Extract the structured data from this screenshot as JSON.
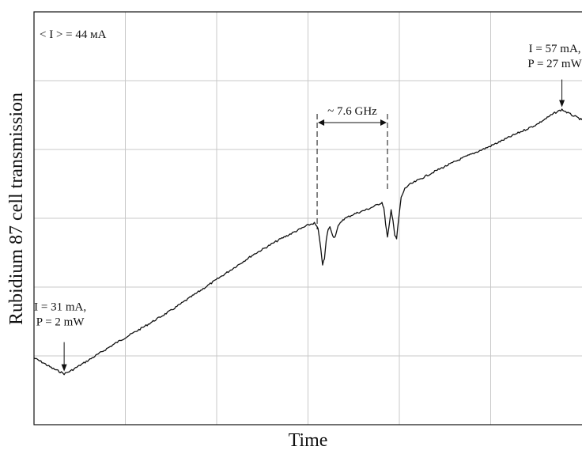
{
  "chart_data": {
    "type": "line",
    "title": "",
    "xlabel": "Time",
    "ylabel": "Rubidium 87 cell transmission",
    "grid": true,
    "x_ticks": 6,
    "y_ticks": 6,
    "xlim": [
      0,
      6
    ],
    "ylim": [
      0,
      6
    ],
    "series": [
      {
        "color": "#111111",
        "points": [
          [
            0.0,
            0.97
          ],
          [
            0.1,
            0.9
          ],
          [
            0.2,
            0.82
          ],
          [
            0.3,
            0.76
          ],
          [
            0.33,
            0.74
          ],
          [
            0.4,
            0.78
          ],
          [
            0.6,
            0.94
          ],
          [
            0.9,
            1.19
          ],
          [
            1.2,
            1.42
          ],
          [
            1.5,
            1.66
          ],
          [
            1.8,
            1.93
          ],
          [
            2.1,
            2.2
          ],
          [
            2.4,
            2.47
          ],
          [
            2.7,
            2.7
          ],
          [
            3.0,
            2.9
          ],
          [
            3.07,
            2.93
          ],
          [
            3.11,
            2.85
          ],
          [
            3.14,
            2.55
          ],
          [
            3.16,
            2.33
          ],
          [
            3.18,
            2.41
          ],
          [
            3.2,
            2.68
          ],
          [
            3.22,
            2.84
          ],
          [
            3.24,
            2.87
          ],
          [
            3.26,
            2.8
          ],
          [
            3.28,
            2.72
          ],
          [
            3.3,
            2.75
          ],
          [
            3.33,
            2.88
          ],
          [
            3.38,
            2.98
          ],
          [
            3.5,
            3.06
          ],
          [
            3.65,
            3.13
          ],
          [
            3.75,
            3.19
          ],
          [
            3.81,
            3.23
          ],
          [
            3.83,
            3.15
          ],
          [
            3.85,
            2.92
          ],
          [
            3.87,
            2.72
          ],
          [
            3.89,
            2.9
          ],
          [
            3.91,
            3.12
          ],
          [
            3.93,
            2.98
          ],
          [
            3.95,
            2.75
          ],
          [
            3.97,
            2.7
          ],
          [
            3.99,
            2.96
          ],
          [
            4.02,
            3.3
          ],
          [
            4.06,
            3.43
          ],
          [
            4.1,
            3.48
          ],
          [
            4.4,
            3.69
          ],
          [
            4.7,
            3.88
          ],
          [
            5.0,
            4.05
          ],
          [
            5.3,
            4.24
          ],
          [
            5.5,
            4.36
          ],
          [
            5.7,
            4.53
          ],
          [
            5.78,
            4.58
          ],
          [
            5.86,
            4.52
          ],
          [
            6.0,
            4.43
          ]
        ]
      }
    ],
    "annotations": [
      {
        "text": "< I > = 44 мA"
      },
      {
        "text": "~ 7.6 GHz",
        "from_x": 3.1,
        "to_x": 3.87
      },
      {
        "line1": "I = 31 mA,",
        "line2": "P = 2 mW",
        "x": 0.33,
        "y": 0.74
      },
      {
        "line1": "I = 57 mA,",
        "line2": "P = 27 mW",
        "x": 5.78,
        "y": 4.58
      }
    ]
  }
}
